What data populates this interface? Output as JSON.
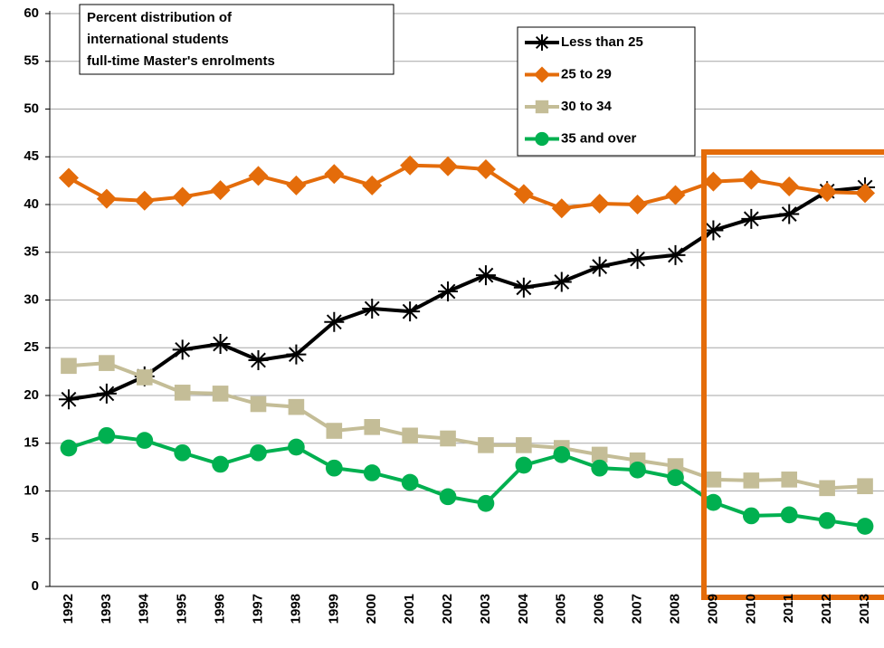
{
  "chart_data": {
    "type": "line",
    "title": [
      "Percent distribution of",
      "international students",
      "full-time Master's enrolments"
    ],
    "categories": [
      "1992",
      "1993",
      "1994",
      "1995",
      "1996",
      "1997",
      "1998",
      "1999",
      "2000",
      "2001",
      "2002",
      "2003",
      "2004",
      "2005",
      "2006",
      "2007",
      "2008",
      "2009",
      "2010",
      "2011",
      "2012",
      "2013"
    ],
    "series": [
      {
        "name": "Less than 25",
        "color": "#000000",
        "marker": "star",
        "values": [
          19.6,
          20.2,
          22.0,
          24.8,
          25.4,
          23.7,
          24.3,
          27.7,
          29.1,
          28.8,
          30.9,
          32.6,
          31.3,
          31.9,
          33.5,
          34.3,
          34.7,
          37.3,
          38.5,
          39.0,
          41.4,
          41.8
        ]
      },
      {
        "name": "25 to 29",
        "color": "#e46c0a",
        "marker": "diamond",
        "values": [
          42.8,
          40.6,
          40.4,
          40.8,
          41.5,
          43.0,
          42.0,
          43.2,
          42.0,
          44.1,
          44.0,
          43.7,
          41.1,
          39.6,
          40.1,
          40.0,
          41.0,
          42.4,
          42.6,
          41.9,
          41.3,
          41.2
        ]
      },
      {
        "name": "30 to 34",
        "color": "#c4bd97",
        "marker": "square",
        "values": [
          23.1,
          23.4,
          21.9,
          20.3,
          20.2,
          19.1,
          18.8,
          16.3,
          16.7,
          15.8,
          15.5,
          14.8,
          14.8,
          14.5,
          13.8,
          13.2,
          12.6,
          11.2,
          11.1,
          11.2,
          10.3,
          10.5
        ]
      },
      {
        "name": "35 and over",
        "color": "#00b050",
        "marker": "circle",
        "values": [
          14.5,
          15.8,
          15.3,
          14.0,
          12.8,
          14.0,
          14.6,
          12.4,
          11.9,
          10.9,
          9.4,
          8.7,
          12.7,
          13.8,
          12.4,
          12.2,
          11.4,
          8.8,
          7.4,
          7.5,
          6.9,
          6.3
        ]
      }
    ],
    "ylim": [
      0,
      60
    ],
    "yticks": [
      0,
      5,
      10,
      15,
      20,
      25,
      30,
      35,
      40,
      45,
      50,
      55,
      60
    ],
    "grid": true
  }
}
